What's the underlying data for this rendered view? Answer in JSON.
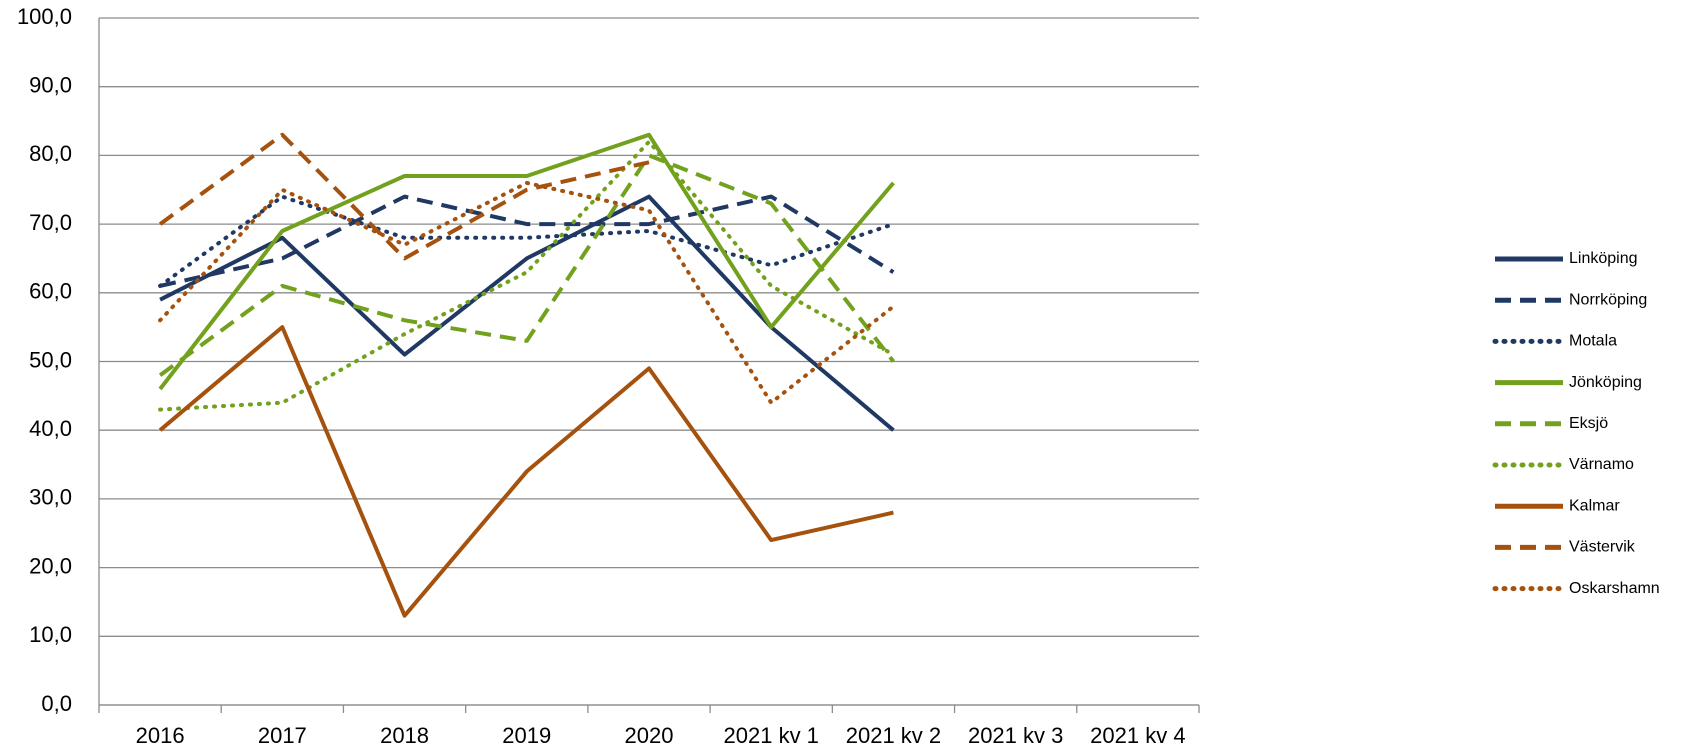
{
  "chart_data": {
    "type": "line",
    "categories": [
      "2016",
      "2017",
      "2018",
      "2019",
      "2020",
      "2021 kv 1",
      "2021 kv 2",
      "2021 kv 3",
      "2021 kv 4"
    ],
    "ylim": [
      0,
      100
    ],
    "yticks": [
      {
        "value": 0,
        "label": "0,0"
      },
      {
        "value": 10,
        "label": "10,0"
      },
      {
        "value": 20,
        "label": "20,0"
      },
      {
        "value": 30,
        "label": "30,0"
      },
      {
        "value": 40,
        "label": "40,0"
      },
      {
        "value": 50,
        "label": "50,0"
      },
      {
        "value": 60,
        "label": "60,0"
      },
      {
        "value": 70,
        "label": "70,0"
      },
      {
        "value": 80,
        "label": "80,0"
      },
      {
        "value": 90,
        "label": "90,0"
      },
      {
        "value": 100,
        "label": "100,0"
      }
    ],
    "grid": true,
    "legend": "right",
    "series": [
      {
        "name": "Linköping",
        "color": "#1f3864",
        "style": "solid",
        "values": [
          59,
          68,
          51,
          65,
          74,
          55,
          40,
          null,
          null
        ]
      },
      {
        "name": "Norrköping",
        "color": "#1f3864",
        "style": "dashed",
        "values": [
          61,
          65,
          74,
          70,
          70,
          74,
          63,
          null,
          null
        ]
      },
      {
        "name": "Motala",
        "color": "#1f3864",
        "style": "dotted",
        "values": [
          61,
          74,
          68,
          68,
          69,
          64,
          70,
          null,
          null
        ]
      },
      {
        "name": "Jönköping",
        "color": "#72a11d",
        "style": "solid",
        "values": [
          46,
          69,
          77,
          77,
          83,
          55,
          76,
          null,
          null
        ]
      },
      {
        "name": "Eksjö",
        "color": "#72a11d",
        "style": "dashed",
        "values": [
          48,
          61,
          56,
          53,
          80,
          73,
          50,
          null,
          null
        ]
      },
      {
        "name": "Värnamo",
        "color": "#72a11d",
        "style": "dotted",
        "values": [
          43,
          44,
          54,
          63,
          82,
          61,
          51,
          null,
          null
        ]
      },
      {
        "name": "Kalmar",
        "color": "#a5520f",
        "style": "solid",
        "values": [
          40,
          55,
          13,
          34,
          49,
          24,
          28,
          null,
          null
        ]
      },
      {
        "name": "Västervik",
        "color": "#a5520f",
        "style": "dashed",
        "values": [
          70,
          83,
          65,
          75,
          79,
          null,
          null,
          null,
          null
        ]
      },
      {
        "name": "Oskarshamn",
        "color": "#a5520f",
        "style": "dotted",
        "values": [
          56,
          75,
          67,
          76,
          72,
          44,
          58,
          null,
          null
        ]
      }
    ]
  }
}
